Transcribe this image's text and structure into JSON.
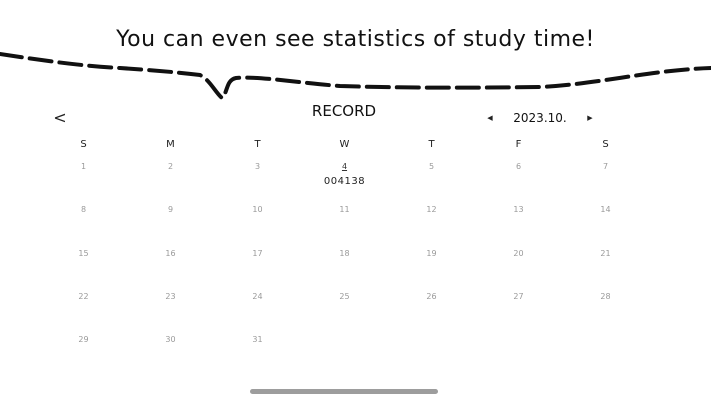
{
  "banner": {
    "text": "You can even see statistics of study time!"
  },
  "header": {
    "back_icon": "chevron-left-icon",
    "back_glyph": "<",
    "title": "RECORD",
    "prev_glyph": "◀",
    "next_glyph": "▶",
    "month_label": "2023.10."
  },
  "calendar": {
    "weekdays": [
      "S",
      "M",
      "T",
      "W",
      "T",
      "F",
      "S"
    ],
    "weeks": [
      [
        {
          "day": "1"
        },
        {
          "day": "2"
        },
        {
          "day": "3"
        },
        {
          "day": "4",
          "record": "004138",
          "highlight": true
        },
        {
          "day": "5"
        },
        {
          "day": "6"
        },
        {
          "day": "7"
        }
      ],
      [
        {
          "day": "8"
        },
        {
          "day": "9"
        },
        {
          "day": "10"
        },
        {
          "day": "11"
        },
        {
          "day": "12"
        },
        {
          "day": "13"
        },
        {
          "day": "14"
        }
      ],
      [
        {
          "day": "15"
        },
        {
          "day": "16"
        },
        {
          "day": "17"
        },
        {
          "day": "18"
        },
        {
          "day": "19"
        },
        {
          "day": "20"
        },
        {
          "day": "21"
        }
      ],
      [
        {
          "day": "22"
        },
        {
          "day": "23"
        },
        {
          "day": "24"
        },
        {
          "day": "25"
        },
        {
          "day": "26"
        },
        {
          "day": "27"
        },
        {
          "day": "28"
        }
      ],
      [
        {
          "day": "29"
        },
        {
          "day": "30"
        },
        {
          "day": "31"
        },
        {
          "day": ""
        },
        {
          "day": ""
        },
        {
          "day": ""
        },
        {
          "day": ""
        }
      ]
    ]
  },
  "colors": {
    "text": "#111111",
    "day_number": "#9a9a9a",
    "home_indicator": "#9d9d9d"
  }
}
